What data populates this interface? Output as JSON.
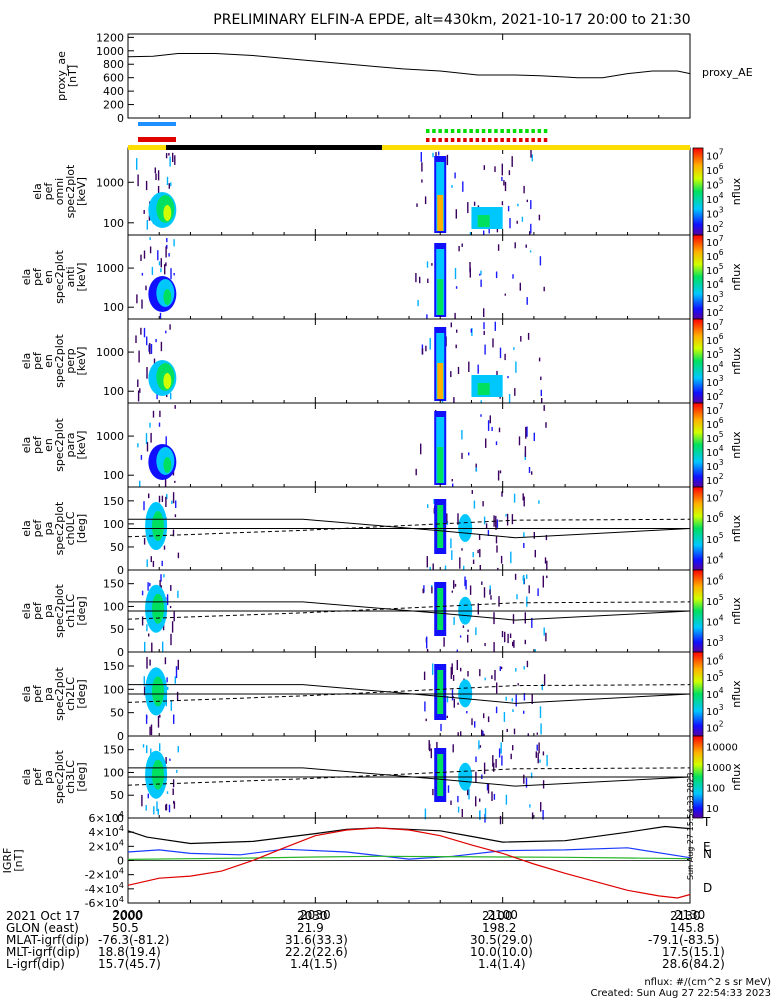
{
  "title": "PRELIMINARY ELFIN-A EPDE, alt=430km, 2021-10-17 20:00 to 21:30",
  "x_ticks": [
    "2000",
    "2030",
    "2100",
    "2130"
  ],
  "chart_data": [
    {
      "type": "line",
      "ylabel": "proxy_ae\n[nT]",
      "yticks": [
        "0",
        "200",
        "400",
        "600",
        "800",
        "1000",
        "1200"
      ],
      "ylim": [
        0,
        1250
      ],
      "series": [
        {
          "name": "proxy_AE",
          "x": [
            0,
            4,
            8,
            14,
            20,
            26,
            32,
            38,
            44,
            50,
            56,
            62,
            66,
            70,
            72,
            76,
            80,
            84,
            88,
            90
          ],
          "values": [
            910,
            920,
            960,
            960,
            930,
            880,
            830,
            780,
            730,
            700,
            640,
            640,
            630,
            610,
            600,
            600,
            660,
            700,
            700,
            660
          ]
        }
      ]
    },
    {
      "type": "heatmap",
      "ylabel": "ela\npef\nomni\nspec2plot\n[keV]",
      "y_scale": "log",
      "yticks": [
        "100",
        "1000"
      ],
      "colorbar": "nflux",
      "cbar_ticks": [
        "10^2",
        "10^3",
        "10^4",
        "10^5",
        "10^6",
        "10^7"
      ]
    },
    {
      "type": "heatmap",
      "ylabel": "ela\npef\nen\nspec2plot\nanti\n[keV]",
      "y_scale": "log",
      "yticks": [
        "100",
        "1000"
      ],
      "colorbar": "nflux",
      "cbar_ticks": [
        "10^2",
        "10^3",
        "10^4",
        "10^5",
        "10^6",
        "10^7"
      ]
    },
    {
      "type": "heatmap",
      "ylabel": "ela\npef\nen\nspec2plot\nperp\n[keV]",
      "y_scale": "log",
      "yticks": [
        "100",
        "1000"
      ],
      "colorbar": "nflux",
      "cbar_ticks": [
        "10^2",
        "10^3",
        "10^4",
        "10^5",
        "10^6",
        "10^7"
      ]
    },
    {
      "type": "heatmap",
      "ylabel": "ela\npef\nen\nspec2plot\npara\n[keV]",
      "y_scale": "log",
      "yticks": [
        "100",
        "1000"
      ],
      "colorbar": "nflux",
      "cbar_ticks": [
        "10^2",
        "10^3",
        "10^4",
        "10^5",
        "10^6",
        "10^7"
      ]
    },
    {
      "type": "heatmap",
      "ylabel": "ela\npef\npa\nspec2plot\nch0LC\n[deg]",
      "yticks": [
        "0",
        "50",
        "100",
        "150"
      ],
      "ylim": [
        0,
        180
      ],
      "colorbar": "nflux",
      "cbar_ticks": [
        "10^4",
        "10^5",
        "10^6",
        "10^7"
      ]
    },
    {
      "type": "heatmap",
      "ylabel": "ela\npef\npa\nspec2plot\nch1LC\n[deg]",
      "yticks": [
        "0",
        "50",
        "100",
        "150"
      ],
      "ylim": [
        0,
        180
      ],
      "colorbar": "nflux",
      "cbar_ticks": [
        "10^3",
        "10^4",
        "10^5",
        "10^6"
      ]
    },
    {
      "type": "heatmap",
      "ylabel": "ela\npef\npa\nspec2plot\nch2LC\n[deg]",
      "yticks": [
        "0",
        "50",
        "100",
        "150"
      ],
      "ylim": [
        0,
        180
      ],
      "colorbar": "nflux",
      "cbar_ticks": [
        "10^2",
        "10^3",
        "10^4",
        "10^5",
        "10^6"
      ]
    },
    {
      "type": "heatmap",
      "ylabel": "ela\npef\npa\nspec2plot\nch3LC\n[deg]",
      "yticks": [
        "0",
        "50",
        "100",
        "150"
      ],
      "ylim": [
        0,
        180
      ],
      "colorbar": "nflux",
      "cbar_ticks": [
        "10",
        "100",
        "1000",
        "10000"
      ]
    },
    {
      "type": "line",
      "ylabel": "IGRF\n[nT]",
      "yticks": [
        "-6×10^4",
        "-4×10^4",
        "-2×10^4",
        "0",
        "2×10^4",
        "4×10^4",
        "6×10^4"
      ],
      "ylim": [
        -60000,
        60000
      ],
      "series": [
        {
          "name": "T",
          "x": [
            0,
            3,
            10,
            20,
            30,
            35,
            40,
            50,
            55,
            60,
            70,
            80,
            86,
            90
          ],
          "values": [
            42000,
            33000,
            24000,
            27000,
            38000,
            44000,
            46000,
            42000,
            34000,
            26000,
            28000,
            40000,
            48000,
            45000
          ]
        },
        {
          "name": "N",
          "x": [
            0,
            5,
            10,
            18,
            25,
            35,
            45,
            52,
            60,
            70,
            80,
            90
          ],
          "values": [
            12000,
            15000,
            10000,
            8000,
            16000,
            12000,
            2000,
            6000,
            14000,
            15000,
            18000,
            4000
          ]
        },
        {
          "name": "E",
          "x": [
            0,
            10,
            20,
            30,
            40,
            50,
            60,
            70,
            80,
            90
          ],
          "values": [
            1500,
            2500,
            3500,
            5000,
            6000,
            5500,
            5000,
            4500,
            3500,
            2500
          ]
        },
        {
          "name": "D",
          "x": [
            0,
            5,
            10,
            15,
            20,
            25,
            30,
            35,
            40,
            45,
            50,
            55,
            60,
            65,
            70,
            75,
            80,
            85,
            88,
            90
          ],
          "values": [
            -35000,
            -25000,
            -22000,
            -15000,
            0,
            18000,
            35000,
            43000,
            46000,
            43000,
            35000,
            22000,
            10000,
            -5000,
            -18000,
            -30000,
            -42000,
            -50000,
            -53000,
            -48000
          ]
        }
      ]
    }
  ],
  "legend_right": {
    "proxy": "proxy_AE",
    "T": "T",
    "N": "N",
    "E": "E",
    "D": "D"
  },
  "footer": {
    "labels": [
      "2021 Oct 17",
      "GLON (east)",
      "MLAT-igrf(dip)",
      "MLT-igrf(dip)",
      "L-igrf(dip)"
    ],
    "row0": [
      "2000",
      "2030",
      "2100",
      "2130"
    ],
    "row1": [
      "50.5",
      "21.9",
      "198.2",
      "145.8"
    ],
    "row2": [
      "-76.3(-81.2)",
      "31.6(33.3)",
      "30.5(29.0)",
      "-79.1(-83.5)"
    ],
    "row3": [
      "18.8(19.4)",
      "22.2(22.6)",
      "10.0(10.0)",
      "17.5(15.1)"
    ],
    "row4": [
      "15.7(45.7)",
      "1.4(1.5)",
      "1.4(1.4)",
      "28.6(84.2)"
    ],
    "units": "nflux: #/(cm^2 s sr MeV)",
    "created": "Created: Sun Aug 27 22:54:33 2023",
    "stamp": "Sun Aug 27 15:54:33 2023"
  },
  "colors": {
    "T": "#000000",
    "N": "#1a3bff",
    "E": "#27b527",
    "D": "#e00000",
    "blue_bar": "#1e90ff",
    "red_bar": "#e00000",
    "green_bar": "#00dd00",
    "yellow_bar": "#ffdd00"
  }
}
